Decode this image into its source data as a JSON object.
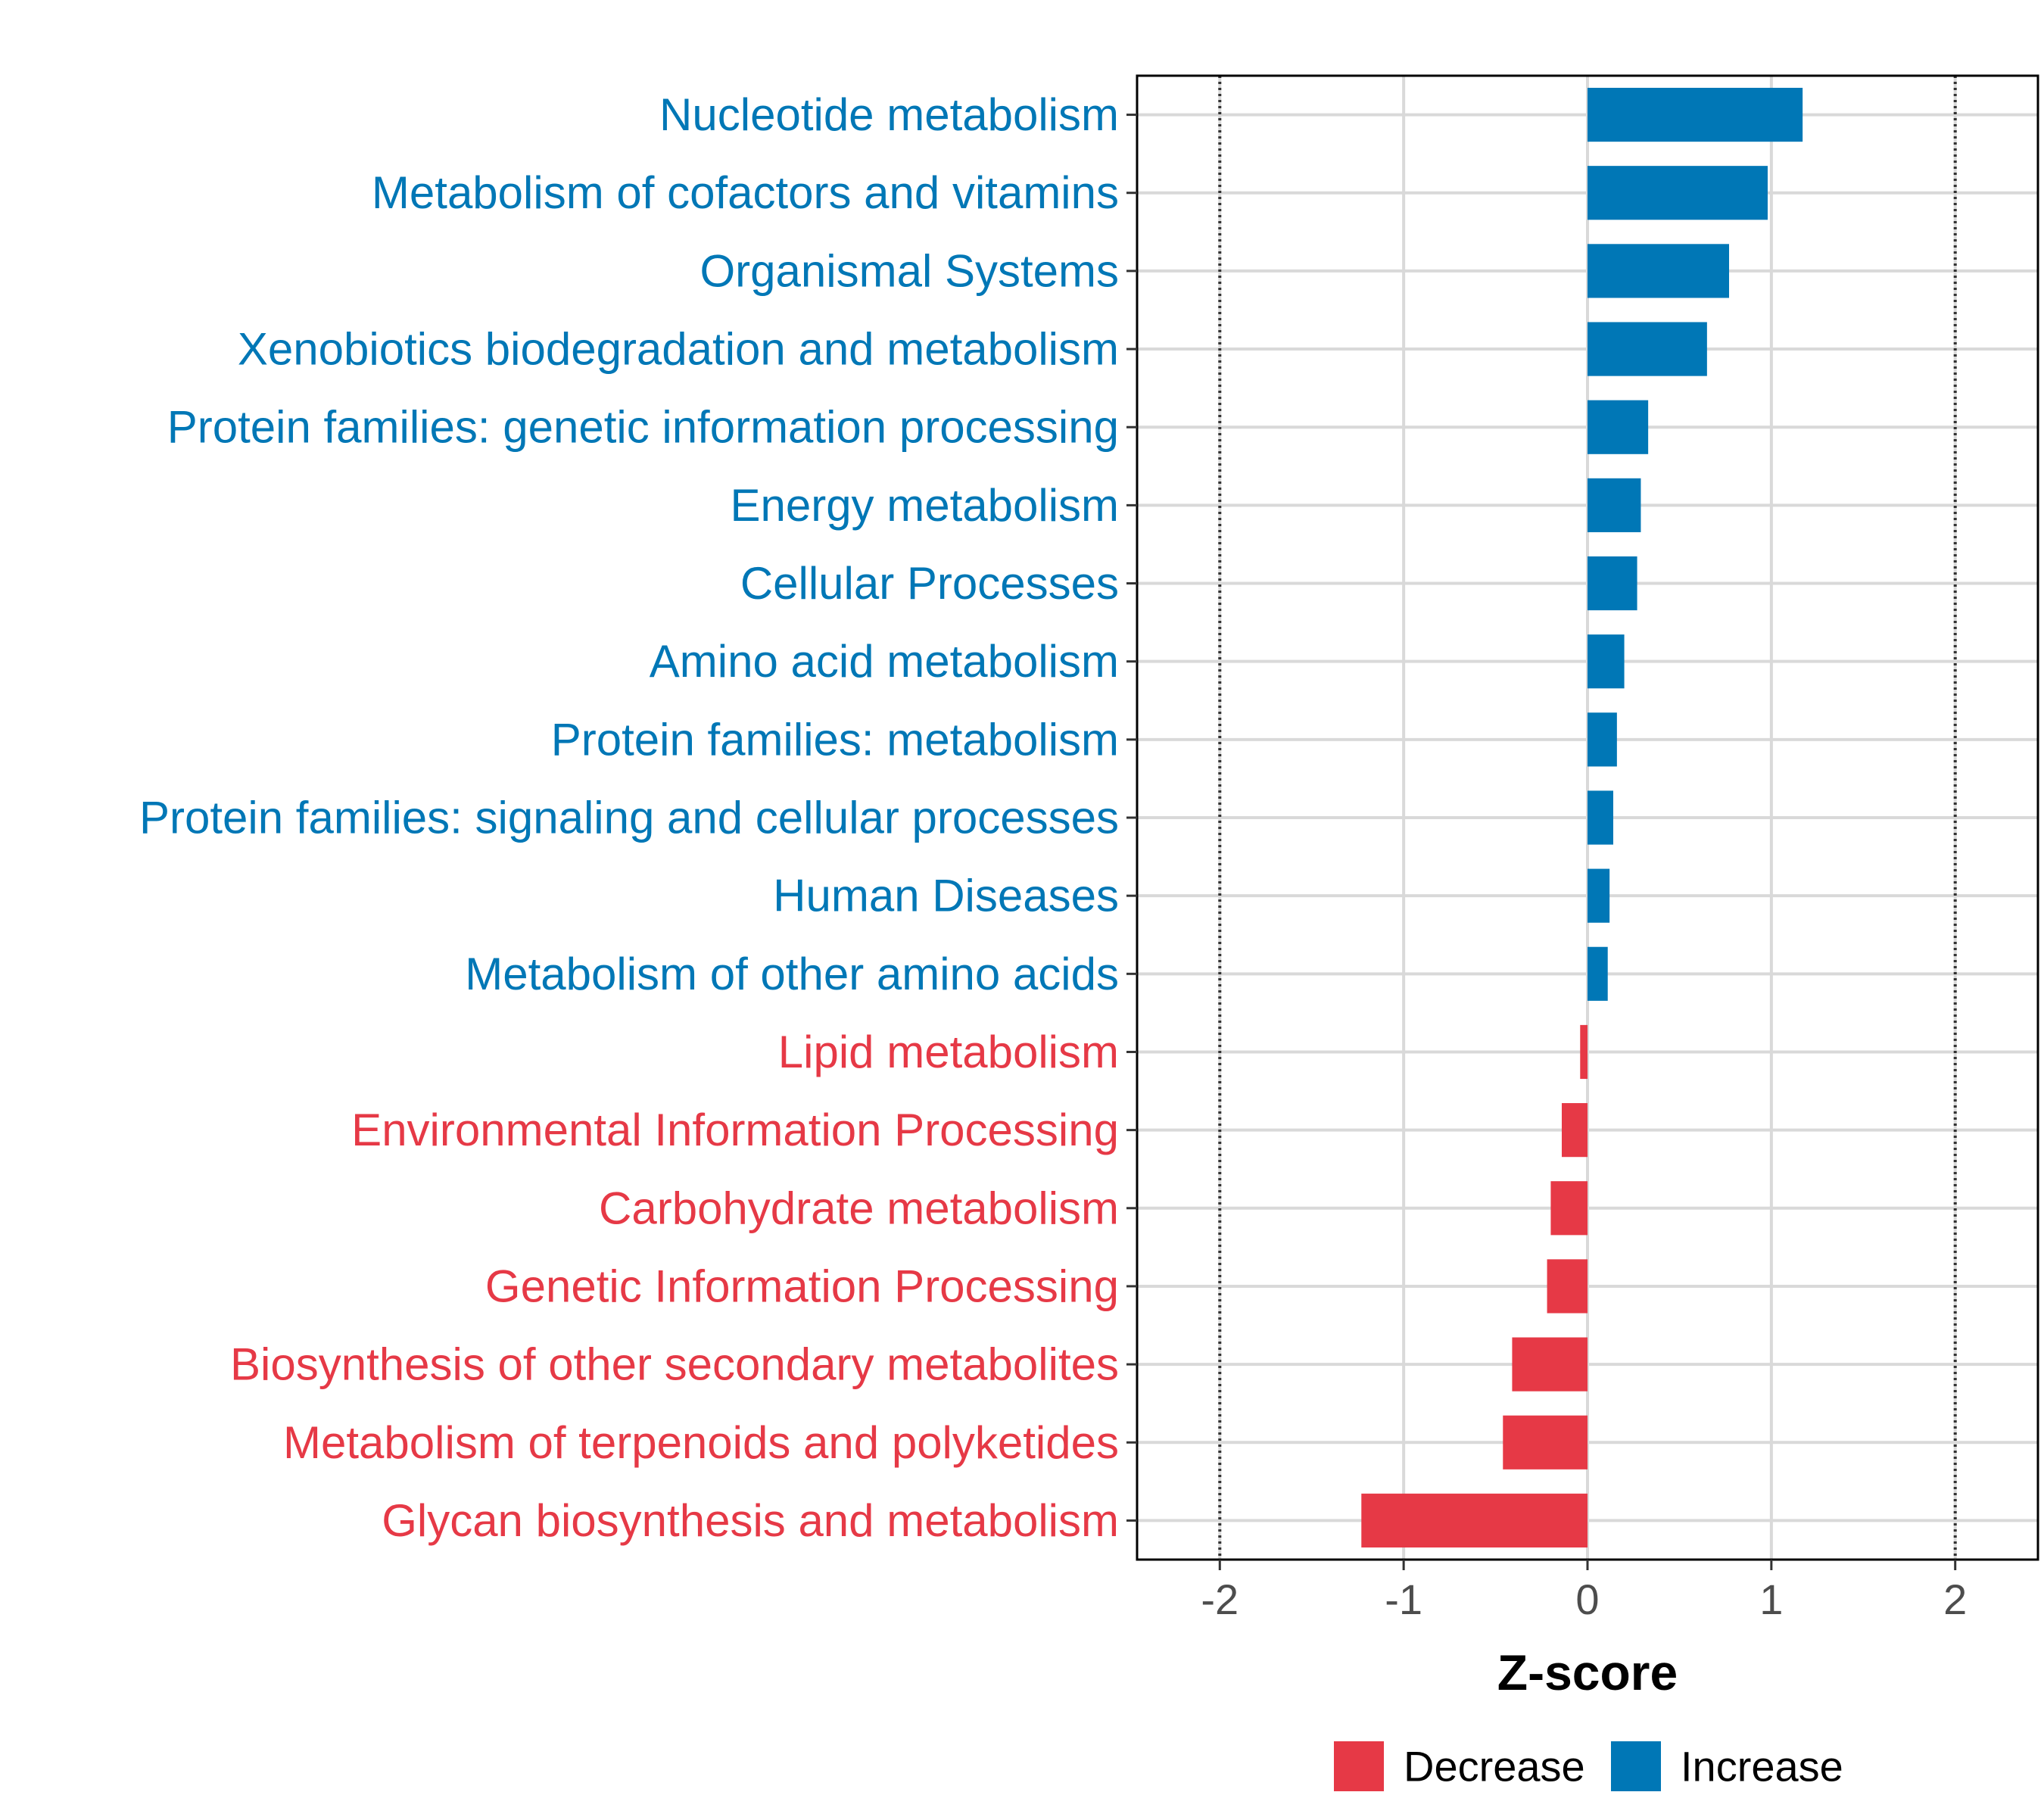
{
  "chart_data": {
    "type": "bar",
    "orientation": "horizontal",
    "title": "",
    "xlabel": "Z-score",
    "ylabel": "",
    "xlim": [
      -2.45,
      2.45
    ],
    "xticks": [
      -2,
      -1,
      0,
      1,
      2
    ],
    "xtick_labels": [
      "-2",
      "-1",
      "0",
      "1",
      "2"
    ],
    "reference_lines": [
      -2,
      2
    ],
    "grid": true,
    "legend_position": "bottom",
    "colors": {
      "Decrease": "#e63946",
      "Increase": "#0077b6"
    },
    "legend": [
      {
        "label": "Decrease",
        "color": "#e63946"
      },
      {
        "label": "Increase",
        "color": "#0077b6"
      }
    ],
    "categories": [
      "Nucleotide metabolism",
      "Metabolism of cofactors and vitamins",
      "Organismal Systems",
      "Xenobiotics biodegradation and metabolism",
      "Protein families: genetic information processing",
      "Energy metabolism",
      "Cellular Processes",
      "Amino acid metabolism",
      "Protein families: metabolism",
      "Protein families: signaling and cellular processes",
      "Human Diseases",
      "Metabolism of other amino acids",
      "Lipid metabolism",
      "Environmental Information Processing",
      "Carbohydrate metabolism",
      "Genetic Information Processing",
      "Biosynthesis of other secondary metabolites",
      "Metabolism of terpenoids and polyketides",
      "Glycan biosynthesis and metabolism"
    ],
    "values": [
      1.17,
      0.98,
      0.77,
      0.65,
      0.33,
      0.29,
      0.27,
      0.2,
      0.16,
      0.14,
      0.12,
      0.11,
      -0.04,
      -0.14,
      -0.2,
      -0.22,
      -0.41,
      -0.46,
      -1.23
    ],
    "groups": [
      "Increase",
      "Increase",
      "Increase",
      "Increase",
      "Increase",
      "Increase",
      "Increase",
      "Increase",
      "Increase",
      "Increase",
      "Increase",
      "Increase",
      "Decrease",
      "Decrease",
      "Decrease",
      "Decrease",
      "Decrease",
      "Decrease",
      "Decrease"
    ]
  }
}
